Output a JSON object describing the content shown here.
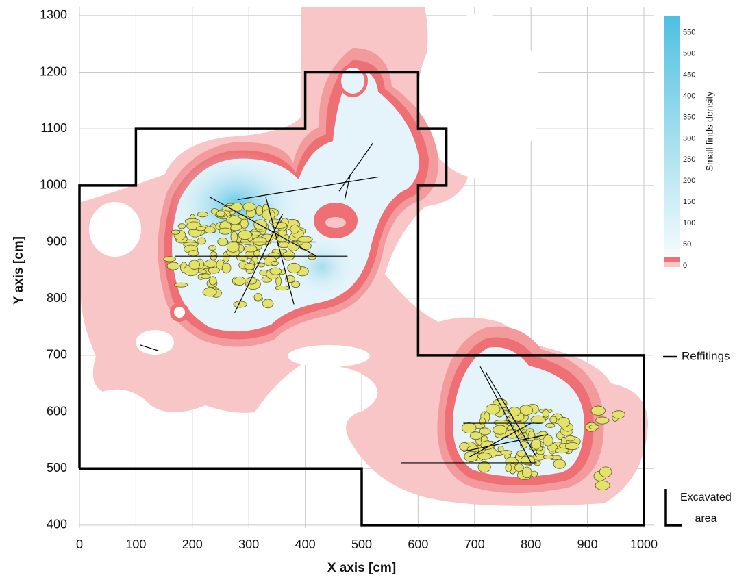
{
  "chart_data": {
    "type": "density-map",
    "xlabel": "X axis [cm]",
    "ylabel": "Y axis [cm]",
    "xlim": [
      0,
      1020
    ],
    "ylim": [
      395,
      1310
    ],
    "xticks": [
      0,
      100,
      200,
      300,
      400,
      500,
      600,
      700,
      800,
      900,
      1000
    ],
    "yticks": [
      400,
      500,
      600,
      700,
      800,
      900,
      1000,
      1100,
      1200,
      1300
    ],
    "grid": true,
    "colorbar": {
      "label": "Small finds density",
      "lim": [
        0,
        590
      ],
      "ticks": [
        0,
        50,
        100,
        150,
        200,
        250,
        300,
        350,
        400,
        450,
        500,
        550
      ]
    },
    "series": [
      {
        "name": "Reffitings",
        "color": "#000000",
        "x": [
          170,
          475,
          null,
          280,
          530,
          null,
          460,
          520,
          null,
          470,
          480,
          null,
          230,
          420,
          null,
          260,
          420,
          null,
          275,
          360,
          null,
          330,
          380,
          null,
          108,
          140,
          null,
          570,
          810,
          null,
          710,
          800,
          null,
          720,
          810,
          null,
          680,
          820,
          null,
          680,
          830,
          null,
          690,
          800
        ],
        "y": [
          875,
          875,
          null,
          975,
          1015,
          null,
          990,
          1075,
          null,
          975,
          1020,
          null,
          980,
          875,
          null,
          900,
          900,
          null,
          775,
          950,
          null,
          980,
          790,
          null,
          718,
          708,
          null,
          510,
          510,
          null,
          680,
          510,
          null,
          670,
          520,
          null,
          580,
          580,
          null,
          530,
          560,
          null,
          520,
          580
        ]
      },
      {
        "name": "Excavated area",
        "color": "#000000",
        "x": [
          0,
          0,
          100,
          100,
          400,
          400,
          600,
          600,
          650,
          650,
          600,
          600,
          1000,
          1000,
          500,
          500,
          0
        ],
        "y": [
          500,
          1000,
          1000,
          1100,
          1100,
          1200,
          1200,
          1100,
          1100,
          1000,
          1000,
          700,
          700,
          400,
          400,
          500,
          500
        ]
      }
    ]
  }
}
